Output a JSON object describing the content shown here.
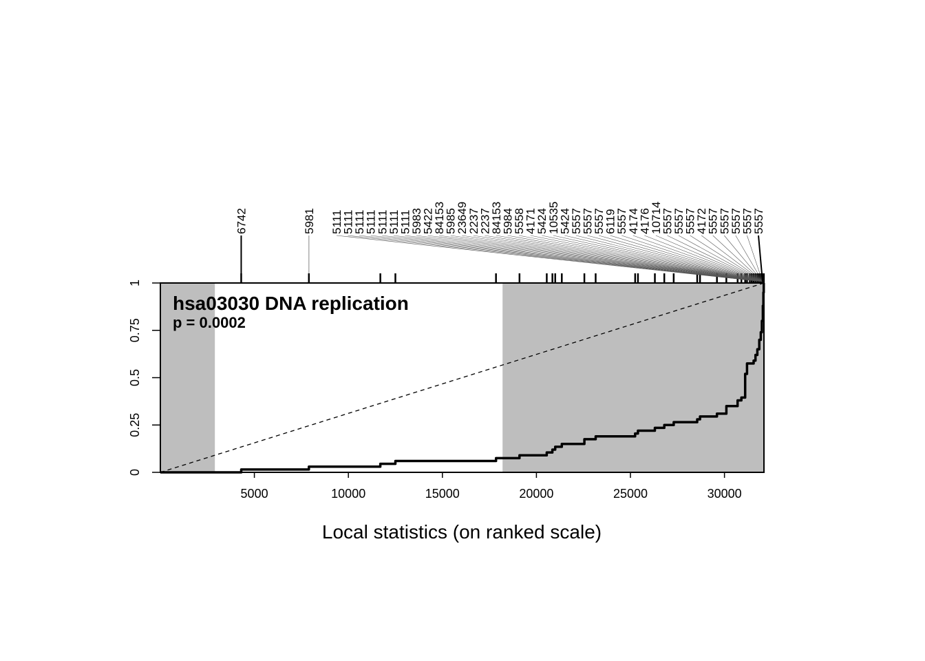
{
  "chart_data": {
    "type": "line",
    "title": "hsa03030 DNA replication",
    "subtitle": "p = 0.0002",
    "xlabel": "Local statistics (on ranked scale)",
    "ylabel": "",
    "xlim": [
      1,
      32100
    ],
    "ylim": [
      0,
      1
    ],
    "x_ticks": [
      5000,
      10000,
      15000,
      20000,
      25000,
      30000
    ],
    "x_tick_labels": [
      "5000",
      "10000",
      "15000",
      "20000",
      "25000",
      "30000"
    ],
    "y_ticks": [
      0,
      0.25,
      0.5,
      0.75,
      1
    ],
    "y_tick_labels": [
      "0",
      "0.25",
      "0.5",
      "0.75",
      "1"
    ],
    "shaded_regions": [
      [
        1,
        2900
      ],
      [
        18200,
        32100
      ]
    ],
    "reference_line": {
      "from": [
        1,
        0
      ],
      "to": [
        32100,
        1
      ],
      "style": "dashed"
    },
    "gene_labels": [
      "6742",
      "5981",
      "5111",
      "5111",
      "5111",
      "5111",
      "5111",
      "5111",
      "5111",
      "5983",
      "5422",
      "84153",
      "5985",
      "23649",
      "2237",
      "2237",
      "84153",
      "5984",
      "5558",
      "4171",
      "5424",
      "10535",
      "5424",
      "5557",
      "5557",
      "5557",
      "6119",
      "5557",
      "4174",
      "4176",
      "10714",
      "5557",
      "5557",
      "5557",
      "4172",
      "5557",
      "5557",
      "5557",
      "5557",
      "5557"
    ],
    "gene_label_x": [
      4300,
      7900
    ],
    "barcode_positions": [
      4300,
      7900,
      11700,
      12500,
      17850,
      19100,
      20550,
      20850,
      21000,
      21350,
      22550,
      23150,
      25250,
      25400,
      26300,
      26800,
      27300,
      28550,
      28700,
      29600,
      30100,
      30700,
      30900,
      31100,
      31200,
      31350,
      31450,
      31550,
      31650,
      31750,
      31800,
      31850,
      31900,
      31950,
      31990,
      32020,
      32050,
      32070,
      32085,
      32095
    ],
    "series": [
      {
        "values": [
          [
            1,
            0
          ],
          [
            4300,
            0
          ],
          [
            4300,
            0.015
          ],
          [
            7900,
            0.015
          ],
          [
            7900,
            0.03
          ],
          [
            11700,
            0.03
          ],
          [
            11700,
            0.045
          ],
          [
            12500,
            0.045
          ],
          [
            12500,
            0.06
          ],
          [
            17850,
            0.06
          ],
          [
            17850,
            0.075
          ],
          [
            19100,
            0.075
          ],
          [
            19100,
            0.09
          ],
          [
            20550,
            0.09
          ],
          [
            20550,
            0.105
          ],
          [
            20850,
            0.105
          ],
          [
            20850,
            0.12
          ],
          [
            21000,
            0.12
          ],
          [
            21000,
            0.135
          ],
          [
            21350,
            0.135
          ],
          [
            21350,
            0.15
          ],
          [
            22550,
            0.15
          ],
          [
            22550,
            0.175
          ],
          [
            23150,
            0.175
          ],
          [
            23150,
            0.19
          ],
          [
            25250,
            0.19
          ],
          [
            25250,
            0.205
          ],
          [
            25400,
            0.205
          ],
          [
            25400,
            0.22
          ],
          [
            26300,
            0.22
          ],
          [
            26300,
            0.235
          ],
          [
            26800,
            0.235
          ],
          [
            26800,
            0.25
          ],
          [
            27300,
            0.25
          ],
          [
            27300,
            0.265
          ],
          [
            28550,
            0.265
          ],
          [
            28550,
            0.28
          ],
          [
            28700,
            0.28
          ],
          [
            28700,
            0.295
          ],
          [
            29600,
            0.295
          ],
          [
            29600,
            0.31
          ],
          [
            30100,
            0.31
          ],
          [
            30100,
            0.35
          ],
          [
            30700,
            0.35
          ],
          [
            30700,
            0.38
          ],
          [
            30900,
            0.38
          ],
          [
            30900,
            0.395
          ],
          [
            31100,
            0.395
          ],
          [
            31100,
            0.52
          ],
          [
            31200,
            0.52
          ],
          [
            31200,
            0.575
          ],
          [
            31550,
            0.575
          ],
          [
            31550,
            0.59
          ],
          [
            31650,
            0.59
          ],
          [
            31650,
            0.62
          ],
          [
            31750,
            0.62
          ],
          [
            31750,
            0.65
          ],
          [
            31850,
            0.65
          ],
          [
            31850,
            0.7
          ],
          [
            31930,
            0.7
          ],
          [
            31930,
            0.74
          ],
          [
            31990,
            0.74
          ],
          [
            31990,
            0.8
          ],
          [
            32040,
            0.8
          ],
          [
            32040,
            0.88
          ],
          [
            32070,
            0.88
          ],
          [
            32070,
            0.95
          ],
          [
            32090,
            0.95
          ],
          [
            32090,
            1.0
          ],
          [
            32100,
            1.0
          ]
        ]
      }
    ]
  }
}
